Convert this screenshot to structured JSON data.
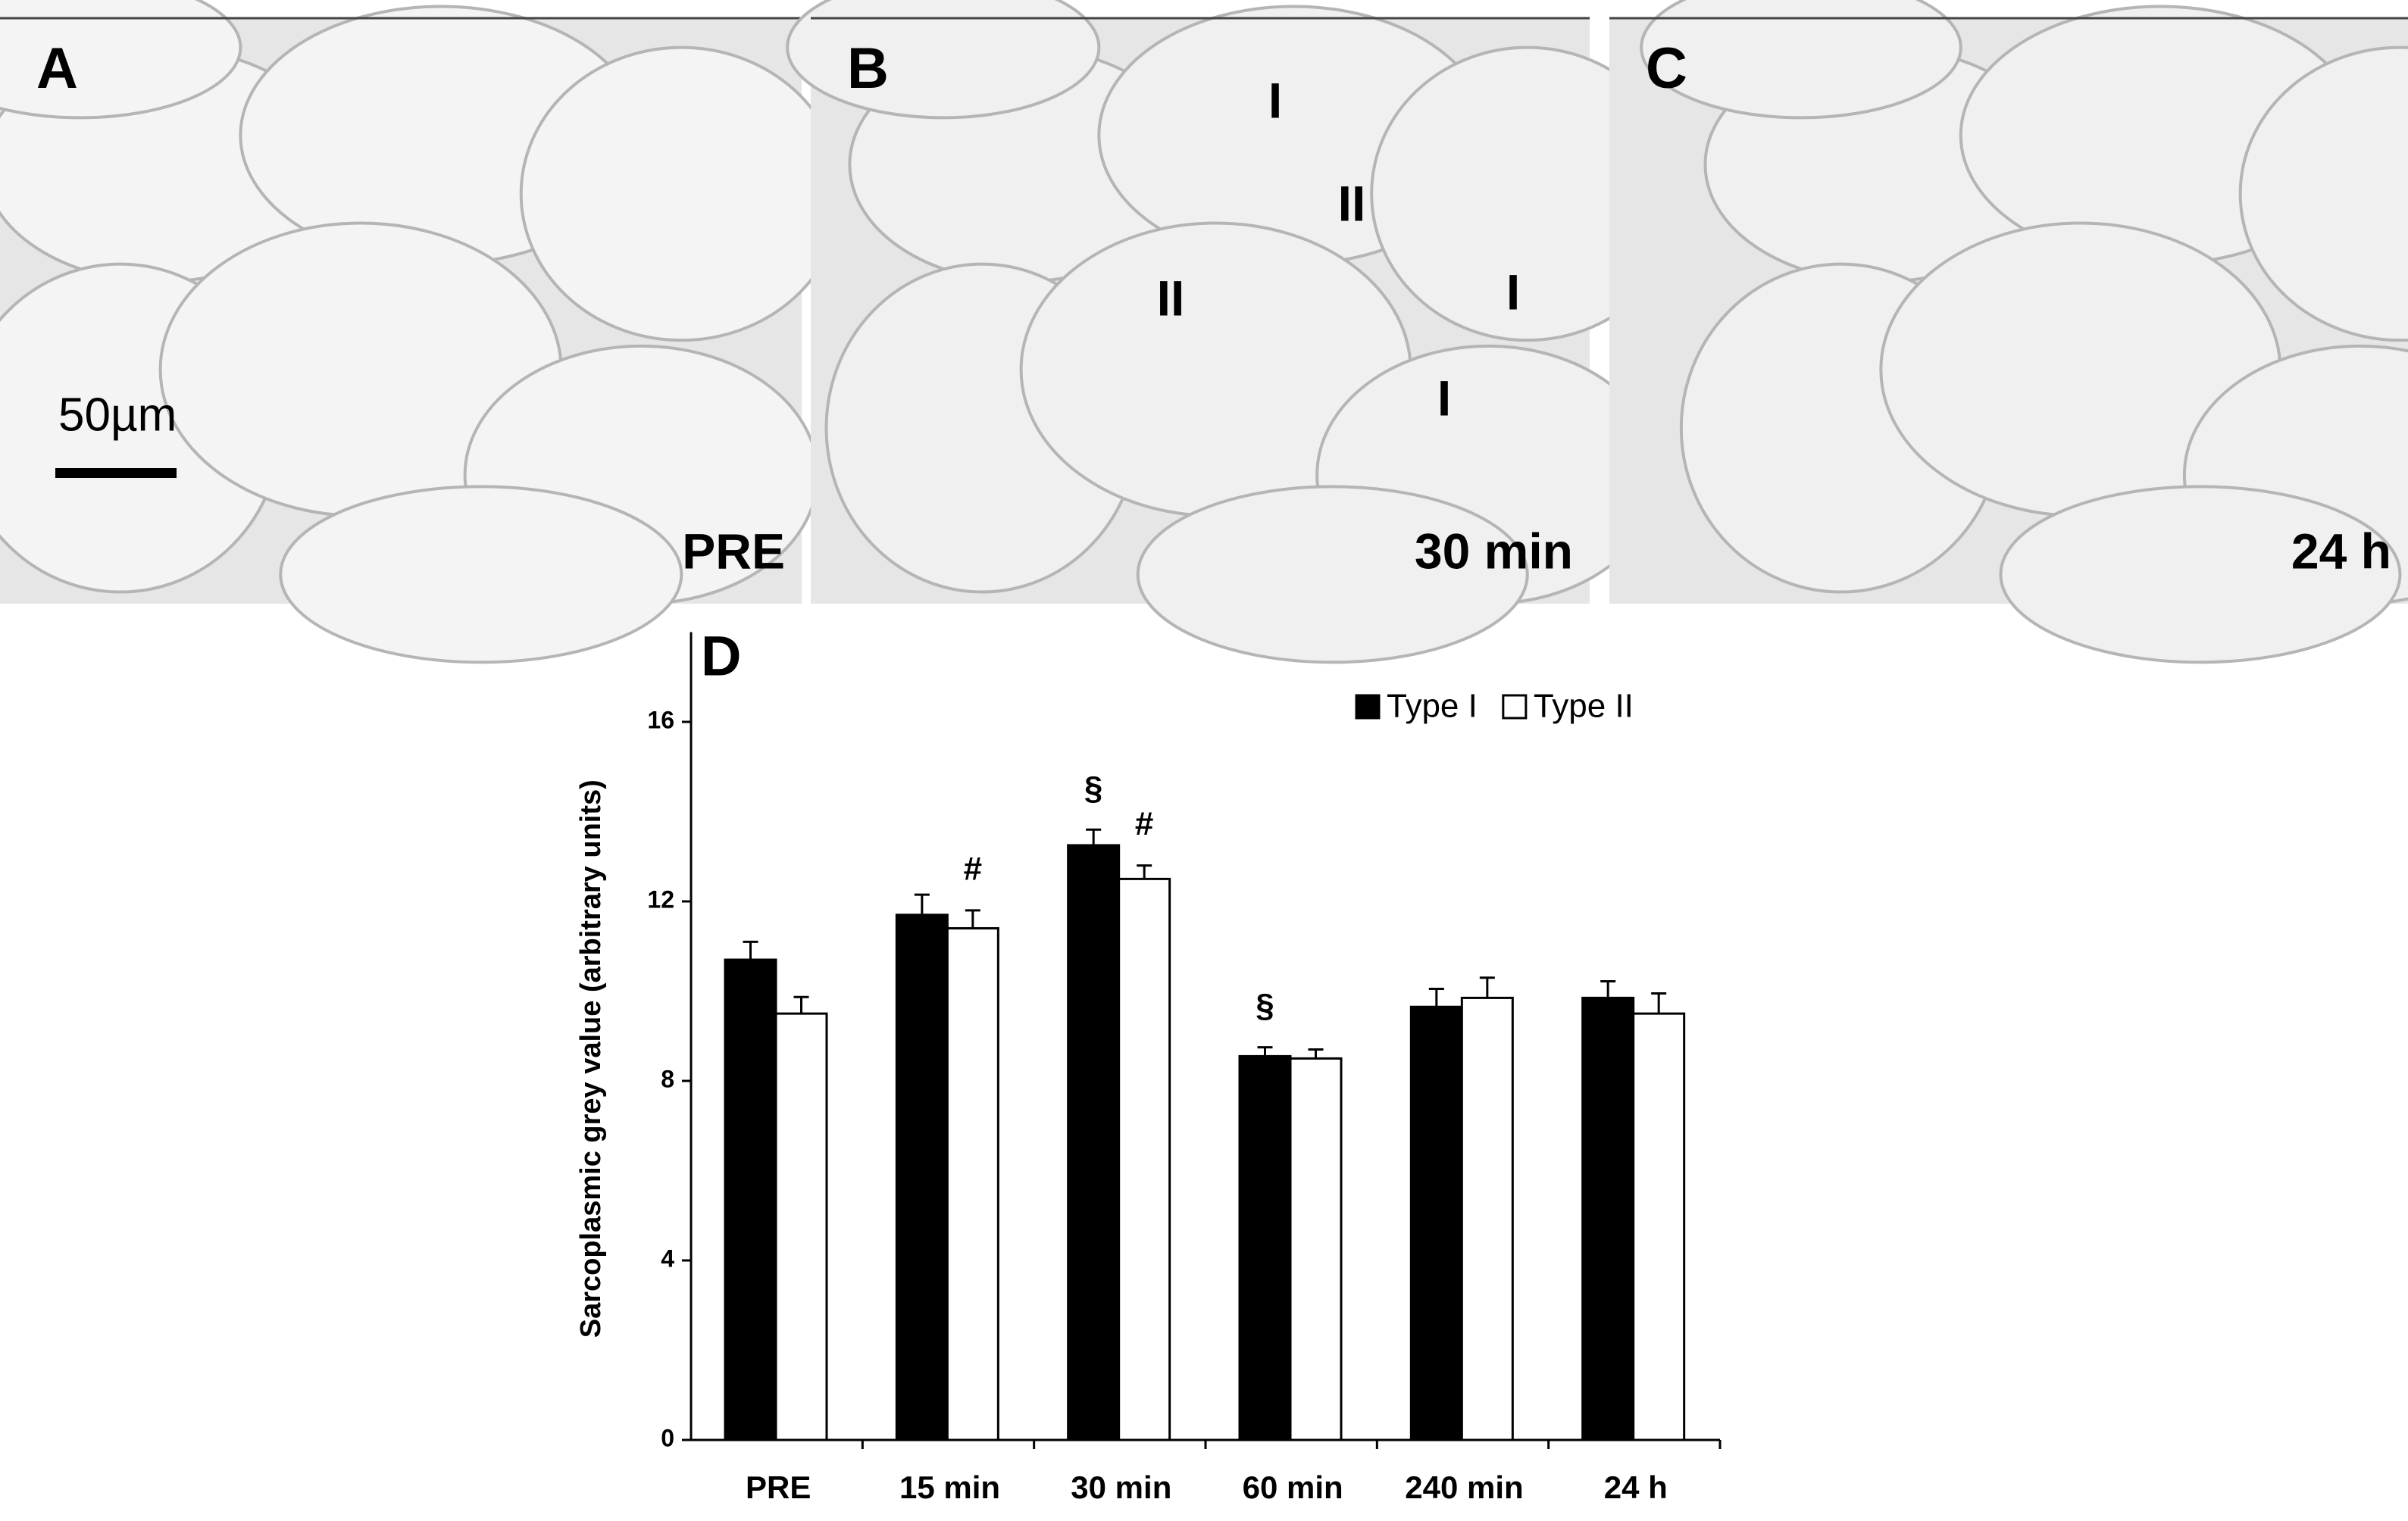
{
  "micrographs": [
    {
      "label": "A",
      "time": "PRE",
      "scale_bar": "50µm"
    },
    {
      "label": "B",
      "time": "30 min",
      "fiber_labels": [
        "I",
        "II",
        "II",
        "I",
        "I"
      ]
    },
    {
      "label": "C",
      "time": "24 h"
    }
  ],
  "chart_data": {
    "type": "bar",
    "panel_label": "D",
    "y_label": "Sarcoplasmic grey value (arbitrary units)",
    "categories": [
      "PRE",
      "15 min",
      "30 min",
      "60 min",
      "240 min",
      "24 h"
    ],
    "series": [
      {
        "name": "Type I",
        "color": "#000000",
        "values": [
          10.7,
          11.7,
          13.25,
          8.55,
          9.65,
          9.85
        ],
        "errors": [
          0.4,
          0.45,
          0.35,
          0.2,
          0.4,
          0.37
        ],
        "annotations": [
          null,
          null,
          "§",
          "§",
          null,
          null
        ]
      },
      {
        "name": "Type II",
        "color": "#ffffff",
        "values": [
          9.5,
          11.4,
          12.5,
          8.5,
          9.85,
          9.5
        ],
        "errors": [
          0.37,
          0.4,
          0.3,
          0.2,
          0.45,
          0.45
        ],
        "annotations": [
          null,
          "#",
          "#",
          null,
          null,
          null
        ]
      }
    ],
    "ylim": [
      0,
      18
    ],
    "yticks": [
      0,
      4,
      8,
      12,
      16
    ],
    "legend": "top-right"
  }
}
